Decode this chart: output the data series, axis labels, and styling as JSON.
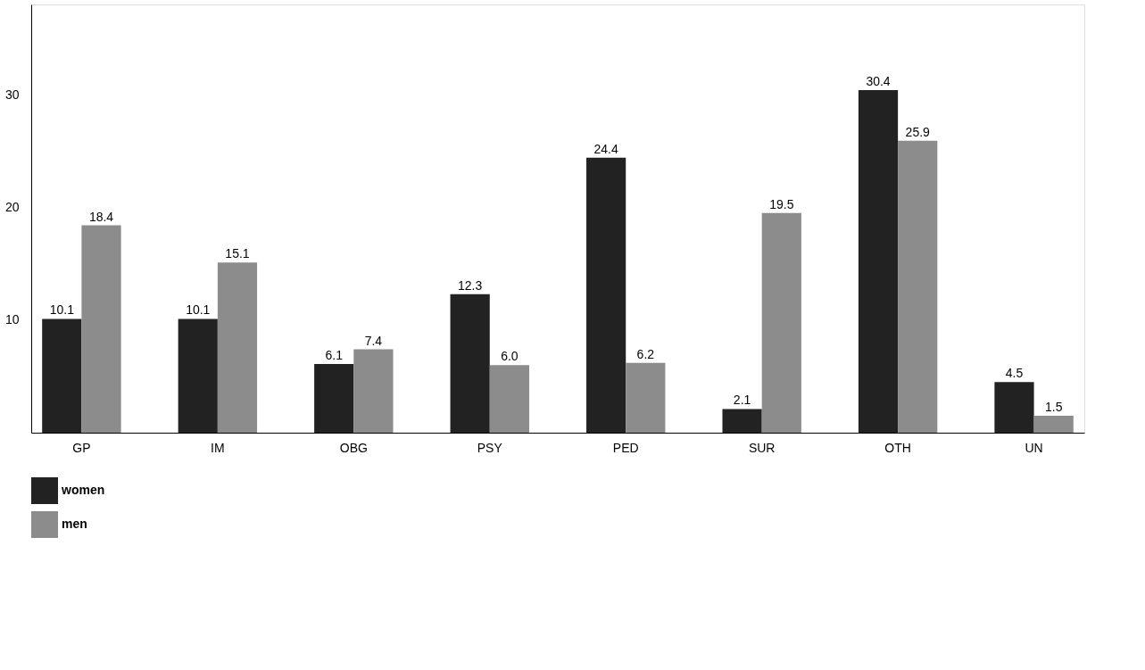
{
  "chart_data": {
    "type": "bar",
    "categories": [
      "GP",
      "IM",
      "OBG",
      "PSY",
      "PED",
      "SUR",
      "OTH",
      "UN"
    ],
    "series": [
      {
        "name": "women",
        "color": "#222222",
        "values": [
          10.1,
          10.1,
          6.1,
          12.3,
          24.4,
          2.1,
          30.4,
          4.5
        ],
        "value_labels": [
          "10.1",
          "10.1",
          "6.1",
          "12.3",
          "24.4",
          "2.1",
          "30.4",
          "4.5"
        ]
      },
      {
        "name": "men",
        "color": "#8c8c8c",
        "values": [
          18.4,
          15.1,
          7.4,
          6.0,
          6.2,
          19.5,
          25.9,
          1.5
        ],
        "value_labels": [
          "18.4",
          "15.1",
          "7.4",
          "6.0",
          "6.2",
          "19.5",
          "25.9",
          "1.5"
        ]
      }
    ],
    "ylim": [
      0,
      38
    ],
    "yticks": [
      10,
      20,
      30
    ],
    "grid": false,
    "legend": "bottom left"
  }
}
